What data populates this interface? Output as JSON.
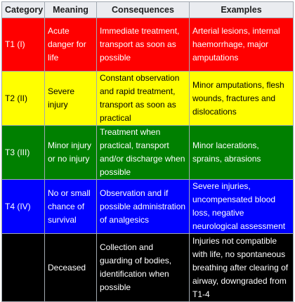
{
  "table": {
    "headers": [
      "Category",
      "Meaning",
      "Consequences",
      "Examples"
    ],
    "rows": [
      {
        "bg": "#ff0000",
        "fg": "#ffffff",
        "category": "T1 (I)",
        "meaning": "Acute danger for life",
        "consequences": "Immediate treatment, transport as soon as possible",
        "examples": "Arterial lesions, internal haemorrhage, major amputations"
      },
      {
        "bg": "#ffff00",
        "fg": "#000000",
        "category": "T2 (II)",
        "meaning": "Severe injury",
        "consequences": "Constant observation and rapid treatment, transport as soon as practical",
        "examples": "Minor amputations, flesh wounds, fractures and dislocations"
      },
      {
        "bg": "#008000",
        "fg": "#ffffff",
        "category": "T3 (III)",
        "meaning": "Minor injury or no injury",
        "consequences": "Treatment when practical, transport and/or discharge when possible",
        "examples": "Minor lacerations, sprains, abrasions"
      },
      {
        "bg": "#0000ff",
        "fg": "#ffffff",
        "category": "T4 (IV)",
        "meaning": "No or small chance of survival",
        "consequences": "Observation and if possible administration of analgesics",
        "examples": "Severe injuries, uncompensated blood loss, negative neurological assessment"
      },
      {
        "bg": "#000000",
        "fg": "#ffffff",
        "category": "",
        "meaning": "Deceased",
        "consequences": "Collection and guarding of bodies, identification when possible",
        "examples": "Injuries not compatible with life, no spontaneous breathing after clearing of airway, downgraded from T1-4"
      }
    ]
  }
}
